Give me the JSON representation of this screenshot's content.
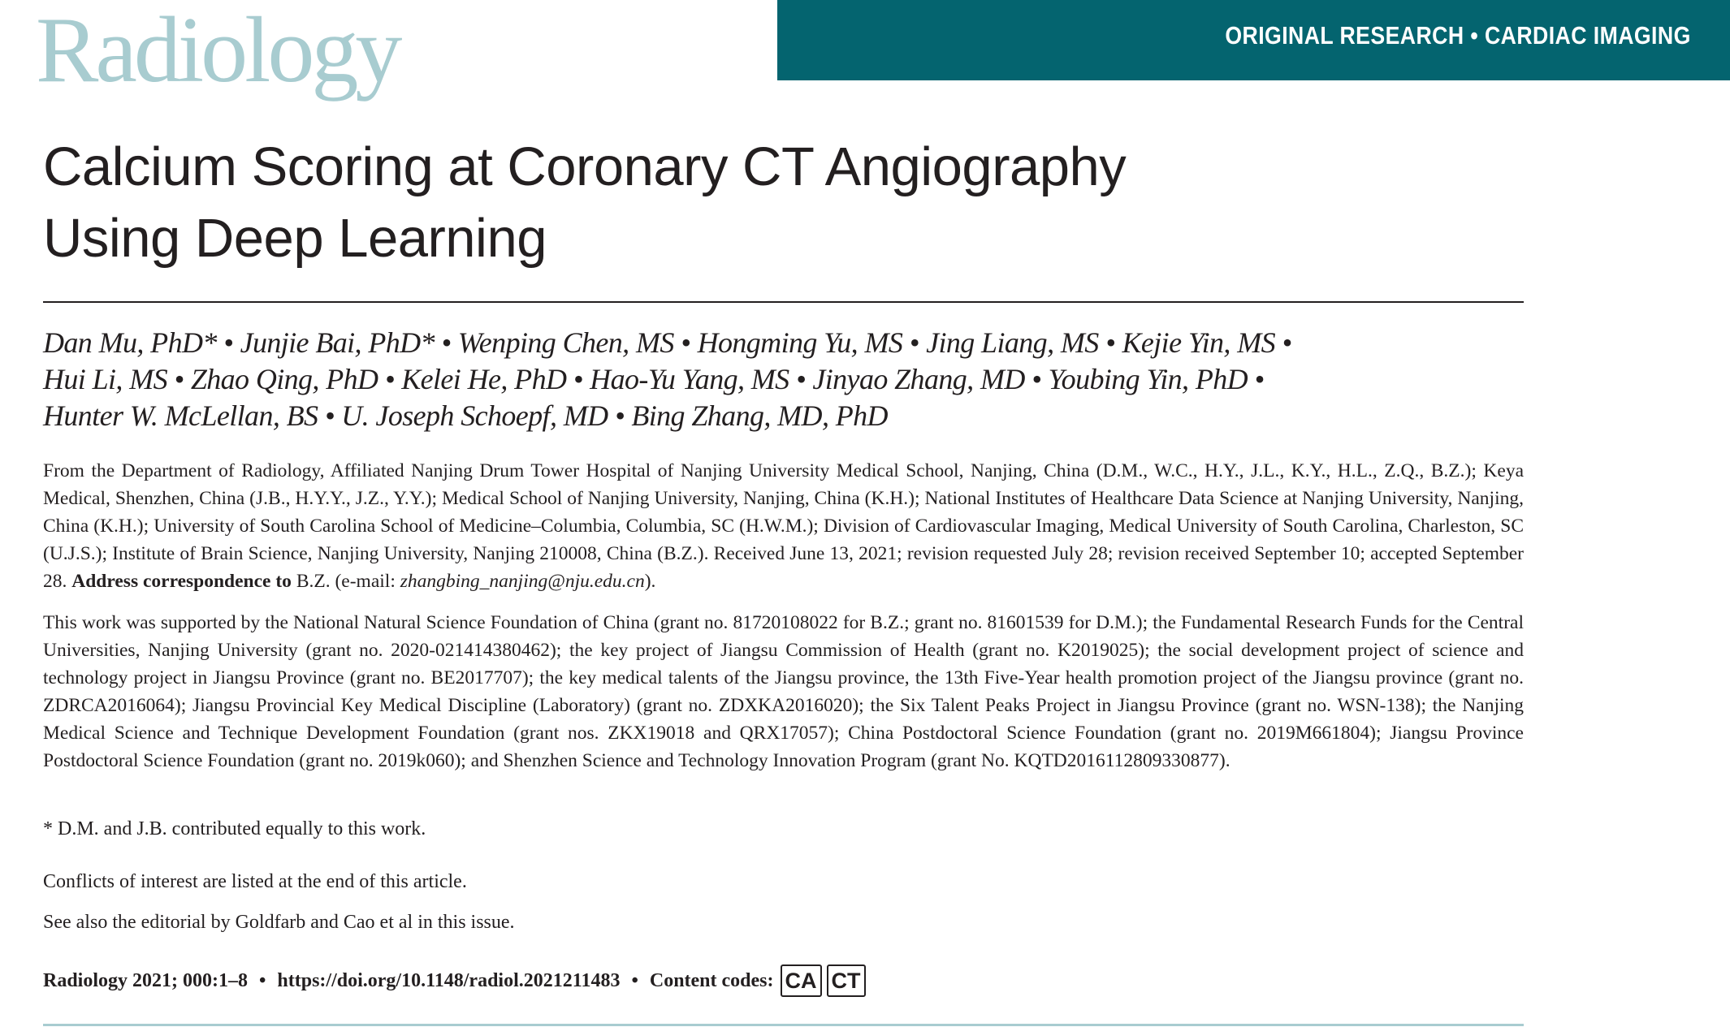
{
  "journal": {
    "logo": "Radiology"
  },
  "header": {
    "category": "ORIGINAL RESEARCH • CARDIAC IMAGING",
    "band_color": "#04646f"
  },
  "article": {
    "title_line1": "Calcium Scoring at Coronary CT Angiography",
    "title_line2": "Using Deep Learning",
    "authors": [
      "Dan Mu, PhD* • Junjie Bai, PhD* • Wenping Chen, MS • Hongming Yu, MS • Jing Liang, MS • Kejie Yin, MS •",
      "Hui Li, MS • Zhao Qing, PhD • Kelei He, PhD  • Hao-Yu Yang, MS • Jinyao Zhang, MD • Youbing Yin, PhD •",
      "Hunter W. McLellan, BS • U. Joseph Schoepf, MD • Bing Zhang, MD, PhD"
    ],
    "affiliations": "From the Department of Radiology, Affiliated Nanjing Drum Tower Hospital of Nanjing University Medical School, Nanjing, China (D.M., W.C., H.Y., J.L., K.Y., H.L., Z.Q., B.Z.); Keya Medical, Shenzhen, China (J.B., H.Y.Y., J.Z., Y.Y.); Medical School of Nanjing University, Nanjing, China (K.H.); National Institutes of Healthcare Data Science at Nanjing University, Nanjing, China (K.H.); University of South Carolina School of Medicine–Columbia, Columbia, SC (H.W.M.); Division of Cardiovascular Imaging, Medical University of South Carolina, Charleston, SC (U.J.S.); Institute of Brain Science, Nanjing University, Nanjing 210008, China (B.Z.). Received June 13, 2021; revision requested July 28; revision received September 10; accepted September 28.",
    "correspondence_label": "Address correspondence to",
    "correspondence_text": " B.Z. (e-mail: ",
    "email": "zhangbing_nanjing@nju.edu.cn",
    "correspondence_end": ").",
    "funding": "This work was supported by the National Natural Science Foundation of China (grant no. 81720108022 for B.Z.; grant no. 81601539 for D.M.); the Fundamental Research Funds for the Central Universities, Nanjing University (grant no. 2020-021414380462); the key project of Jiangsu Commission of Health (grant no. K2019025); the social development project of science and technology project in Jiangsu Province (grant no. BE2017707); the key medical talents of the Jiangsu province, the 13th Five-Year health promotion project of the Jiangsu province (grant no. ZDRCA2016064); Jiangsu Provincial Key Medical Discipline (Laboratory) (grant no. ZDXKA2016020); the Six Talent Peaks Project in Jiangsu Province (grant no. WSN-138); the Nanjing Medical Science and Technique Development Foundation (grant nos. ZKX19018 and QRX17057); China Postdoctoral Science Foundation (grant no. 2019M661804); Jiangsu Province Postdoctoral Science Foundation (grant no. 2019k060); and Shenzhen Science and Technology Innovation Program (grant No. KQTD2016112809330877).",
    "equal_contribution": "* D.M. and J.B. contributed equally to this work.",
    "conflicts": "Conflicts of interest are listed at the end of this article.",
    "see_also": "See also the editorial by Goldfarb and Cao et al in this issue.",
    "citation": "Radiology 2021; 000:1–8",
    "doi": "https://doi.org/10.1148/radiol.2021211483",
    "content_codes_label": "Content codes:",
    "content_codes": [
      "CA",
      "CT"
    ]
  }
}
